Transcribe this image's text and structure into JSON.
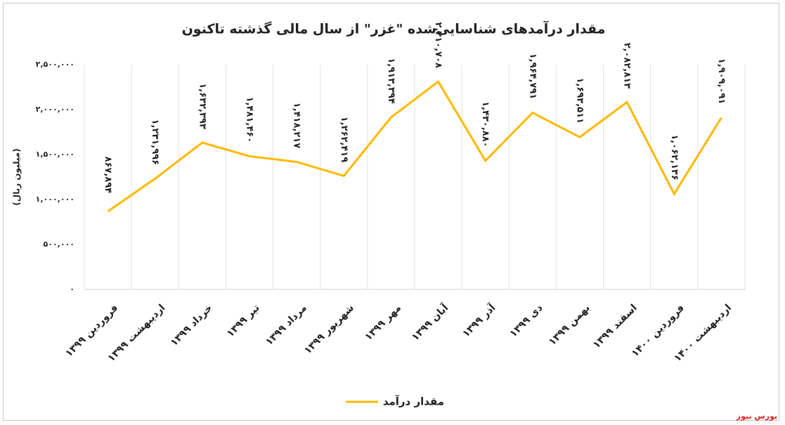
{
  "chart_data": {
    "type": "line",
    "title": "مقدار درآمدهای شناسایی‌شده \"غزر\" از سال مالی گذشته تاکنون",
    "y_axis_label": "(میلیون ریال)",
    "categories": [
      "فروردین ۱۳۹۹",
      "اردیبهشت ۱۳۹۹",
      "خرداد ۱۳۹۹",
      "تیر ۱۳۹۹",
      "مرداد ۱۳۹۹",
      "شهریور ۱۳۹۹",
      "مهر ۱۳۹۹",
      "آبان ۱۳۹۹",
      "آذر ۱۳۹۹",
      "دی ۱۳۹۹",
      "بهمن ۱۳۹۹",
      "اسفند ۱۳۹۹",
      "فروردین ۱۴۰۰",
      "اردیبهشت ۱۴۰۰"
    ],
    "series": [
      {
        "name": "مقدار درآمد",
        "color": "#ffb900",
        "values": [
          867894,
          1231996,
          1632393,
          1481460,
          1418217,
          1262419,
          1913394,
          2310708,
          1430880,
          1964791,
          1693511,
          2082813,
          1062136,
          1909091
        ],
        "value_labels": [
          "۸۶۷,۸۹۴",
          "۱,۲۳۱,۹۹۶",
          "۱,۶۳۲,۳۹۳",
          "۱,۴۸۱,۴۶۰",
          "۱,۴۱۸,۲۱۷",
          "۱,۲۶۲,۴۱۹",
          "۱,۹۱۳,۳۹۴",
          "۲,۳۱۰,۷۰۸",
          "۱,۴۳۰,۸۸۰",
          "۱,۹۶۴,۷۹۱",
          "۱,۶۹۳,۵۱۱",
          "۲,۰۸۲,۸۱۳",
          "۱,۰۶۲,۱۳۶",
          "۱,۹۰۹,۰۹۱"
        ]
      }
    ],
    "ylim": [
      0,
      2500000
    ],
    "yticks": [
      {
        "value": 0,
        "label": "۰"
      },
      {
        "value": 500000,
        "label": "۵۰۰,۰۰۰"
      },
      {
        "value": 1000000,
        "label": "۱,۰۰۰,۰۰۰"
      },
      {
        "value": 1500000,
        "label": "۱,۵۰۰,۰۰۰"
      },
      {
        "value": 2000000,
        "label": "۲,۰۰۰,۰۰۰"
      },
      {
        "value": 2500000,
        "label": "۲,۵۰۰,۰۰۰"
      }
    ],
    "legend": "bottom",
    "source": "بورس نیوز"
  }
}
